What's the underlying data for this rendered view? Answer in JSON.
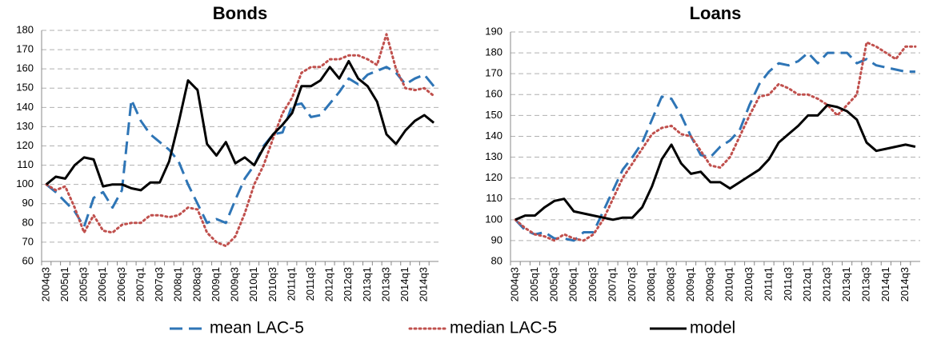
{
  "legend": {
    "series": [
      {
        "name": "mean LAC-5",
        "color": "#2e75b6",
        "dash": "dashed"
      },
      {
        "name": "median LAC-5",
        "color": "#c0504d",
        "dash": "dotted"
      },
      {
        "name": "model",
        "color": "#000000",
        "dash": "solid"
      }
    ]
  },
  "chart_data": [
    {
      "type": "line",
      "title": "Bonds",
      "categories": [
        "2004q3",
        null,
        "2005q1",
        null,
        "2005q3",
        null,
        "2006q1",
        null,
        "2006q3",
        null,
        "2007q1",
        null,
        "2007q3",
        null,
        "2008q1",
        null,
        "2008q3",
        null,
        "2009q1",
        null,
        "2009q3",
        null,
        "2010q1",
        null,
        "2010q3",
        null,
        "2011q1",
        null,
        "2011q3",
        null,
        "2012q1",
        null,
        "2012q3",
        null,
        "2013q1",
        null,
        "2013q3",
        null,
        "2014q1",
        null,
        "2014q3",
        null
      ],
      "ylim": [
        60,
        180
      ],
      "yticks": [
        60,
        70,
        80,
        90,
        100,
        110,
        120,
        130,
        140,
        150,
        160,
        170,
        180
      ],
      "grid": true,
      "series": [
        {
          "values": [
            100,
            96,
            91,
            86,
            78,
            93,
            96,
            88,
            97,
            144,
            133,
            126,
            122,
            118,
            112,
            100,
            90,
            80,
            82,
            80,
            92,
            103,
            110,
            120,
            126,
            127,
            141,
            142,
            135,
            136,
            142,
            148,
            155,
            152,
            157,
            159,
            161,
            158,
            152,
            155,
            157,
            151
          ]
        },
        {
          "values": [
            100,
            97,
            99,
            88,
            75,
            84,
            76,
            75,
            79,
            80,
            80,
            84,
            84,
            83,
            84,
            88,
            87,
            75,
            70,
            68,
            73,
            85,
            100,
            110,
            124,
            137,
            145,
            158,
            161,
            161,
            165,
            165,
            167,
            167,
            165,
            162,
            178,
            160,
            150,
            149,
            150,
            146
          ]
        },
        {
          "values": [
            100,
            104,
            103,
            110,
            114,
            113,
            99,
            100,
            100,
            98,
            97,
            101,
            101,
            112,
            132,
            154,
            149,
            121,
            115,
            122,
            111,
            114,
            110,
            119,
            126,
            131,
            137,
            151,
            151,
            154,
            161,
            155,
            164,
            155,
            151,
            143,
            126,
            121,
            128,
            133,
            136,
            132
          ]
        }
      ]
    },
    {
      "type": "line",
      "title": "Loans",
      "categories": [
        "2004q3",
        null,
        "2005q1",
        null,
        "2005q3",
        null,
        "2006q1",
        null,
        "2006q3",
        null,
        "2007q1",
        null,
        "2007q3",
        null,
        "2008q1",
        null,
        "2008q3",
        null,
        "2009q1",
        null,
        "2009q3",
        null,
        "2010q1",
        null,
        "2010q3",
        null,
        "2011q1",
        null,
        "2011q3",
        null,
        "2012q1",
        null,
        "2012q3",
        null,
        "2013q1",
        null,
        "2013q3",
        null,
        "2014q1",
        null,
        "2014q3",
        null
      ],
      "ylim": [
        80,
        190
      ],
      "yticks": [
        80,
        90,
        100,
        110,
        120,
        130,
        140,
        150,
        160,
        170,
        180,
        190
      ],
      "grid": true,
      "series": [
        {
          "values": [
            100,
            95,
            93,
            94,
            91,
            91,
            90,
            94,
            94,
            104,
            114,
            124,
            130,
            137,
            148,
            159,
            158,
            150,
            140,
            131,
            130,
            135,
            138,
            143,
            155,
            165,
            171,
            175,
            174,
            176,
            180,
            175,
            180,
            180,
            180,
            175,
            177,
            174,
            173,
            172,
            171,
            171
          ]
        },
        {
          "values": [
            100,
            96,
            93,
            92,
            90,
            93,
            91,
            90,
            93,
            100,
            110,
            120,
            127,
            134,
            141,
            144,
            145,
            141,
            140,
            133,
            126,
            125,
            130,
            140,
            150,
            159,
            160,
            165,
            163,
            160,
            160,
            158,
            155,
            150,
            155,
            160,
            185,
            183,
            180,
            177,
            183,
            183
          ]
        },
        {
          "values": [
            100,
            102,
            102,
            106,
            109,
            110,
            104,
            103,
            102,
            101,
            100,
            101,
            101,
            106,
            116,
            129,
            136,
            127,
            122,
            123,
            118,
            118,
            115,
            118,
            121,
            124,
            129,
            137,
            141,
            145,
            150,
            150,
            155,
            154,
            152,
            148,
            137,
            133,
            134,
            135,
            136,
            135
          ]
        }
      ]
    }
  ]
}
